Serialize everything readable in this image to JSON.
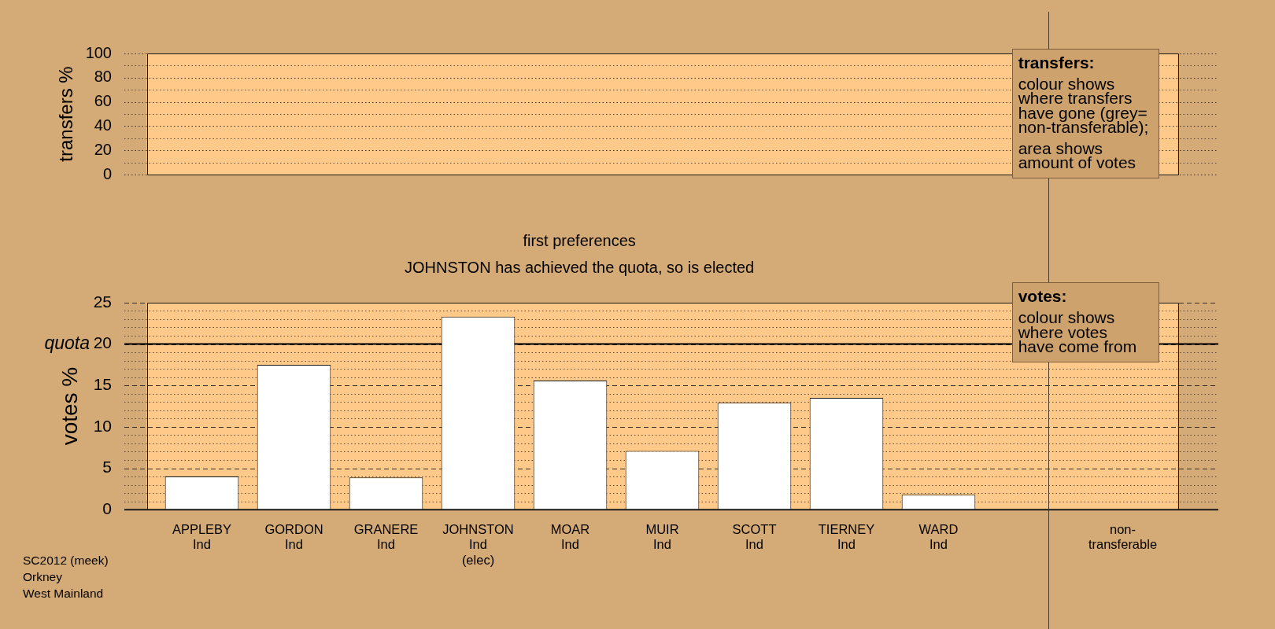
{
  "chart_data": [
    {
      "type": "bar",
      "ylabel": "transfers %",
      "categories": [
        null,
        null,
        null,
        null,
        null,
        null,
        null,
        null,
        null,
        null,
        null
      ],
      "values": [
        null,
        null,
        null,
        null,
        null,
        null,
        null,
        null,
        null,
        null,
        null
      ],
      "ylim": [
        0,
        100
      ],
      "yticks": [
        0,
        {
          "value": 10,
          "label": null
        },
        20,
        {
          "value": 30,
          "label": null
        },
        40,
        {
          "value": 50,
          "label": null
        },
        60,
        {
          "value": 70,
          "label": null
        },
        80,
        {
          "value": 90,
          "label": null
        },
        100
      ],
      "grid": "y",
      "annotations": [
        "transfers:",
        "colour shows\nwhere transfers\nhave gone (grey=\nnon-transferable);",
        "area shows\namount of votes"
      ]
    },
    {
      "type": "bar",
      "title": "first preferences",
      "subtitle": "JOHNSTON has achieved the quota, so is elected",
      "ylabel": "votes %",
      "categories": [
        "APPLEBY\nInd",
        "GORDON\nInd",
        "GRANERE\nInd",
        "JOHNSTON\nInd\n(elec)",
        "MOAR\nInd",
        "MUIR\nInd",
        "SCOTT\nInd",
        "TIERNEY\nInd",
        "WARD\nInd",
        null,
        "non-\ntransferable"
      ],
      "values": [
        4.0,
        17.5,
        3.9,
        23.3,
        15.6,
        7.1,
        12.9,
        13.5,
        1.8,
        null,
        null
      ],
      "color": "#ffffff",
      "ylim": [
        0,
        25
      ],
      "yticks": [
        0,
        {
          "value": 1,
          "label": null
        },
        {
          "value": 2,
          "label": null
        },
        {
          "value": 3,
          "label": null
        },
        {
          "value": 4,
          "label": null
        },
        5,
        {
          "value": 6,
          "label": null
        },
        {
          "value": 7,
          "label": null
        },
        {
          "value": 8,
          "label": null
        },
        {
          "value": 9,
          "label": null
        },
        10,
        {
          "value": 11,
          "label": null
        },
        {
          "value": 12,
          "label": null
        },
        {
          "value": 13,
          "label": null
        },
        {
          "value": 14,
          "label": null
        },
        15,
        {
          "value": 16,
          "label": null
        },
        {
          "value": 17,
          "label": null
        },
        {
          "value": 18,
          "label": null
        },
        {
          "value": 19,
          "label": null
        },
        20,
        {
          "value": 21,
          "label": null
        },
        {
          "value": 22,
          "label": null
        },
        {
          "value": 23,
          "label": null
        },
        {
          "value": 24,
          "label": null
        },
        25
      ],
      "grid": "y",
      "ref_lines": [
        {
          "axis": "y",
          "value": 20,
          "label": "quota"
        }
      ],
      "annotations": [
        "votes:",
        "colour shows\nwhere votes\nhave come from",
        "SC2012 (meek)\nOrkney\nWest Mainland"
      ]
    }
  ]
}
